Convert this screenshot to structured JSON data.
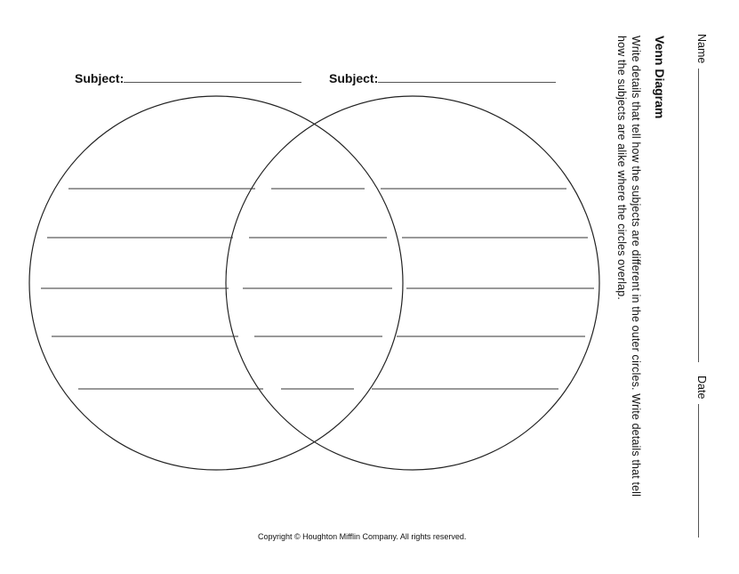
{
  "subject_left": {
    "label": "Subject:"
  },
  "subject_right": {
    "label": "Subject:"
  },
  "header": {
    "name_label": "Name",
    "date_label": "Date",
    "title": "Venn Diagram",
    "instructions_line1": "Write details that tell how the subjects are different in the outer circles. Write details that tell",
    "instructions_line2": "how the subjects are alike where the circles overlap."
  },
  "footer": {
    "copyright": "Copyright © Houghton Mifflin Company. All rights reserved."
  },
  "colors": {
    "ink": "#111111",
    "line": "#555555"
  }
}
